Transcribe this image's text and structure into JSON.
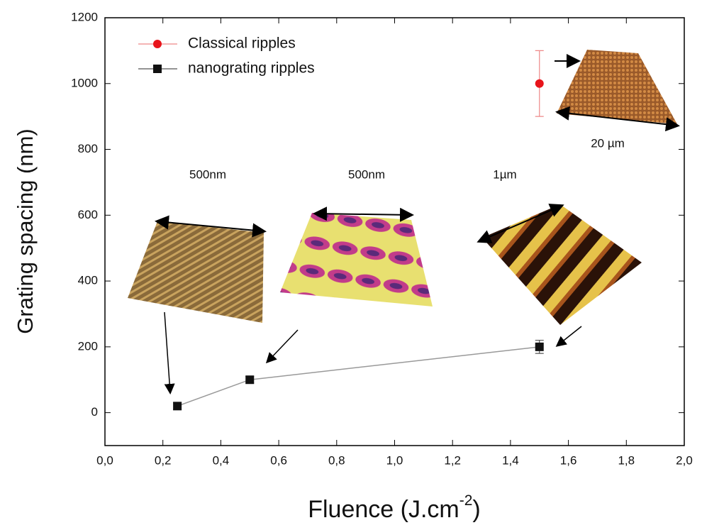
{
  "chart_data": {
    "type": "scatter",
    "ylabel": "Grating spacing (nm)",
    "xlabel": [
      "Fluence (J.cm",
      "-2",
      ")"
    ],
    "xlim": [
      0,
      2
    ],
    "ylim": [
      -100,
      1200
    ],
    "xticks": [
      {
        "value": 0,
        "label": "0,0"
      },
      {
        "value": 0.2,
        "label": "0,2"
      },
      {
        "value": 0.4,
        "label": "0,4"
      },
      {
        "value": 0.6,
        "label": "0,6"
      },
      {
        "value": 0.8,
        "label": "0,8"
      },
      {
        "value": 1.0,
        "label": "1,0"
      },
      {
        "value": 1.2,
        "label": "1,2"
      },
      {
        "value": 1.4,
        "label": "1,4"
      },
      {
        "value": 1.6,
        "label": "1,6"
      },
      {
        "value": 1.8,
        "label": "1,8"
      },
      {
        "value": 2.0,
        "label": "2,0"
      }
    ],
    "yticks": [
      0,
      200,
      400,
      600,
      800,
      1000,
      1200
    ],
    "series": [
      {
        "name": "Classical ripples",
        "color": "#e8141b",
        "marker": "circle",
        "connect": false,
        "x": [
          1.5
        ],
        "values": [
          1000
        ],
        "errors": [
          100
        ]
      },
      {
        "name": "nanograting ripples",
        "color": "#111111",
        "marker": "square",
        "connect": true,
        "x": [
          0.25,
          0.5,
          1.5
        ],
        "values": [
          20,
          100,
          200
        ],
        "errors": [
          10,
          10,
          20
        ]
      }
    ],
    "annotations": [
      "500nm",
      "500nm",
      "1µm",
      "20 µm"
    ]
  }
}
